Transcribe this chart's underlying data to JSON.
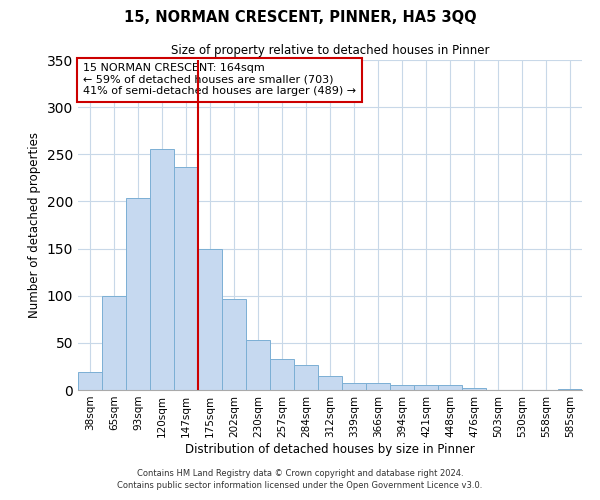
{
  "title": "15, NORMAN CRESCENT, PINNER, HA5 3QQ",
  "subtitle": "Size of property relative to detached houses in Pinner",
  "xlabel": "Distribution of detached houses by size in Pinner",
  "ylabel": "Number of detached properties",
  "bar_labels": [
    "38sqm",
    "65sqm",
    "93sqm",
    "120sqm",
    "147sqm",
    "175sqm",
    "202sqm",
    "230sqm",
    "257sqm",
    "284sqm",
    "312sqm",
    "339sqm",
    "366sqm",
    "394sqm",
    "421sqm",
    "448sqm",
    "476sqm",
    "503sqm",
    "530sqm",
    "558sqm",
    "585sqm"
  ],
  "bar_values": [
    19,
    100,
    204,
    256,
    236,
    150,
    96,
    53,
    33,
    26,
    15,
    7,
    7,
    5,
    5,
    5,
    2,
    0,
    0,
    0,
    1
  ],
  "bar_color": "#c6d9f0",
  "bar_edge_color": "#7bafd4",
  "vline_x": 4.5,
  "vline_color": "#cc0000",
  "ylim": [
    0,
    350
  ],
  "yticks": [
    0,
    50,
    100,
    150,
    200,
    250,
    300,
    350
  ],
  "annotation_line1": "15 NORMAN CRESCENT: 164sqm",
  "annotation_line2": "← 59% of detached houses are smaller (703)",
  "annotation_line3": "41% of semi-detached houses are larger (489) →",
  "footnote1": "Contains HM Land Registry data © Crown copyright and database right 2024.",
  "footnote2": "Contains public sector information licensed under the Open Government Licence v3.0.",
  "background_color": "#ffffff",
  "grid_color": "#c8d8e8"
}
